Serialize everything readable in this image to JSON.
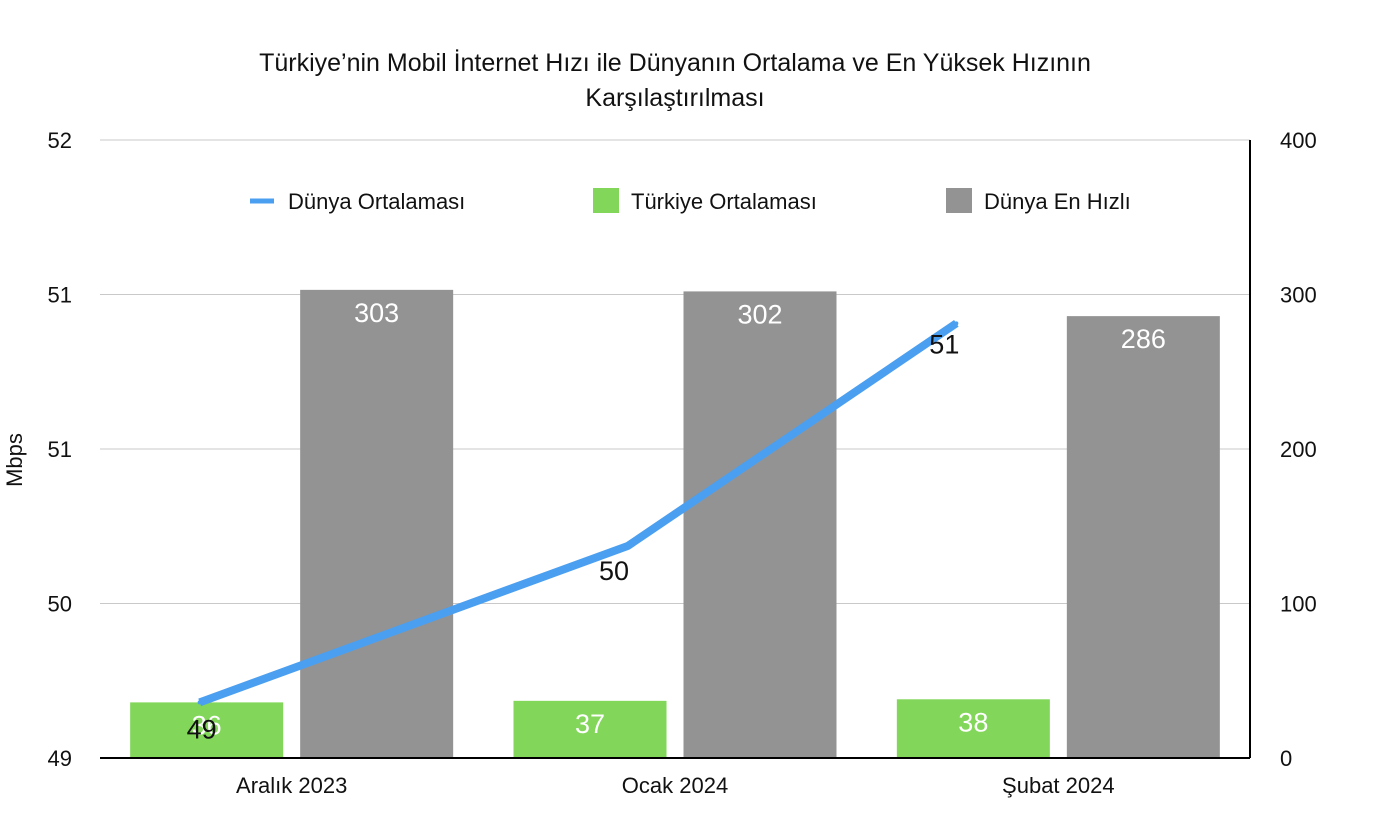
{
  "chart_data": {
    "type": "bar",
    "title_line1": "Türkiye’nin Mobil İnternet Hızı ile Dünyanın Ortalama ve En Yüksek Hızının",
    "title_line2": "Karşılaştırılması",
    "categories": [
      "Aralık 2023",
      "Ocak 2024",
      "Şubat 2024"
    ],
    "ylabel_left": "Mbps",
    "y_left": {
      "min": 49,
      "max": 52,
      "ticks": [
        49,
        49.75,
        50.5,
        51.25,
        52
      ],
      "tick_labels": [
        "49",
        "50",
        "51",
        "51",
        "52"
      ]
    },
    "y_right": {
      "min": 0,
      "max": 400,
      "ticks": [
        0,
        100,
        200,
        300,
        400
      ],
      "tick_labels": [
        "0",
        "100",
        "200",
        "300",
        "400"
      ]
    },
    "grid": true,
    "legend_position": "top",
    "series": [
      {
        "name": "Dünya Ortalaması",
        "kind": "line",
        "axis": "left",
        "color": "#4b9ff0",
        "values": [
          49.27,
          50.03,
          51.11
        ],
        "labels": [
          "49",
          "50",
          "51"
        ]
      },
      {
        "name": "Türkiye Ortalaması",
        "kind": "bar",
        "axis": "right",
        "color": "#82d65a",
        "values": [
          36,
          37,
          38
        ],
        "labels": [
          "36",
          "37",
          "38"
        ]
      },
      {
        "name": "Dünya En Hızlı",
        "kind": "bar",
        "axis": "right",
        "color": "#939393",
        "values": [
          303,
          302,
          286
        ],
        "labels": [
          "303",
          "302",
          "286"
        ]
      }
    ]
  }
}
